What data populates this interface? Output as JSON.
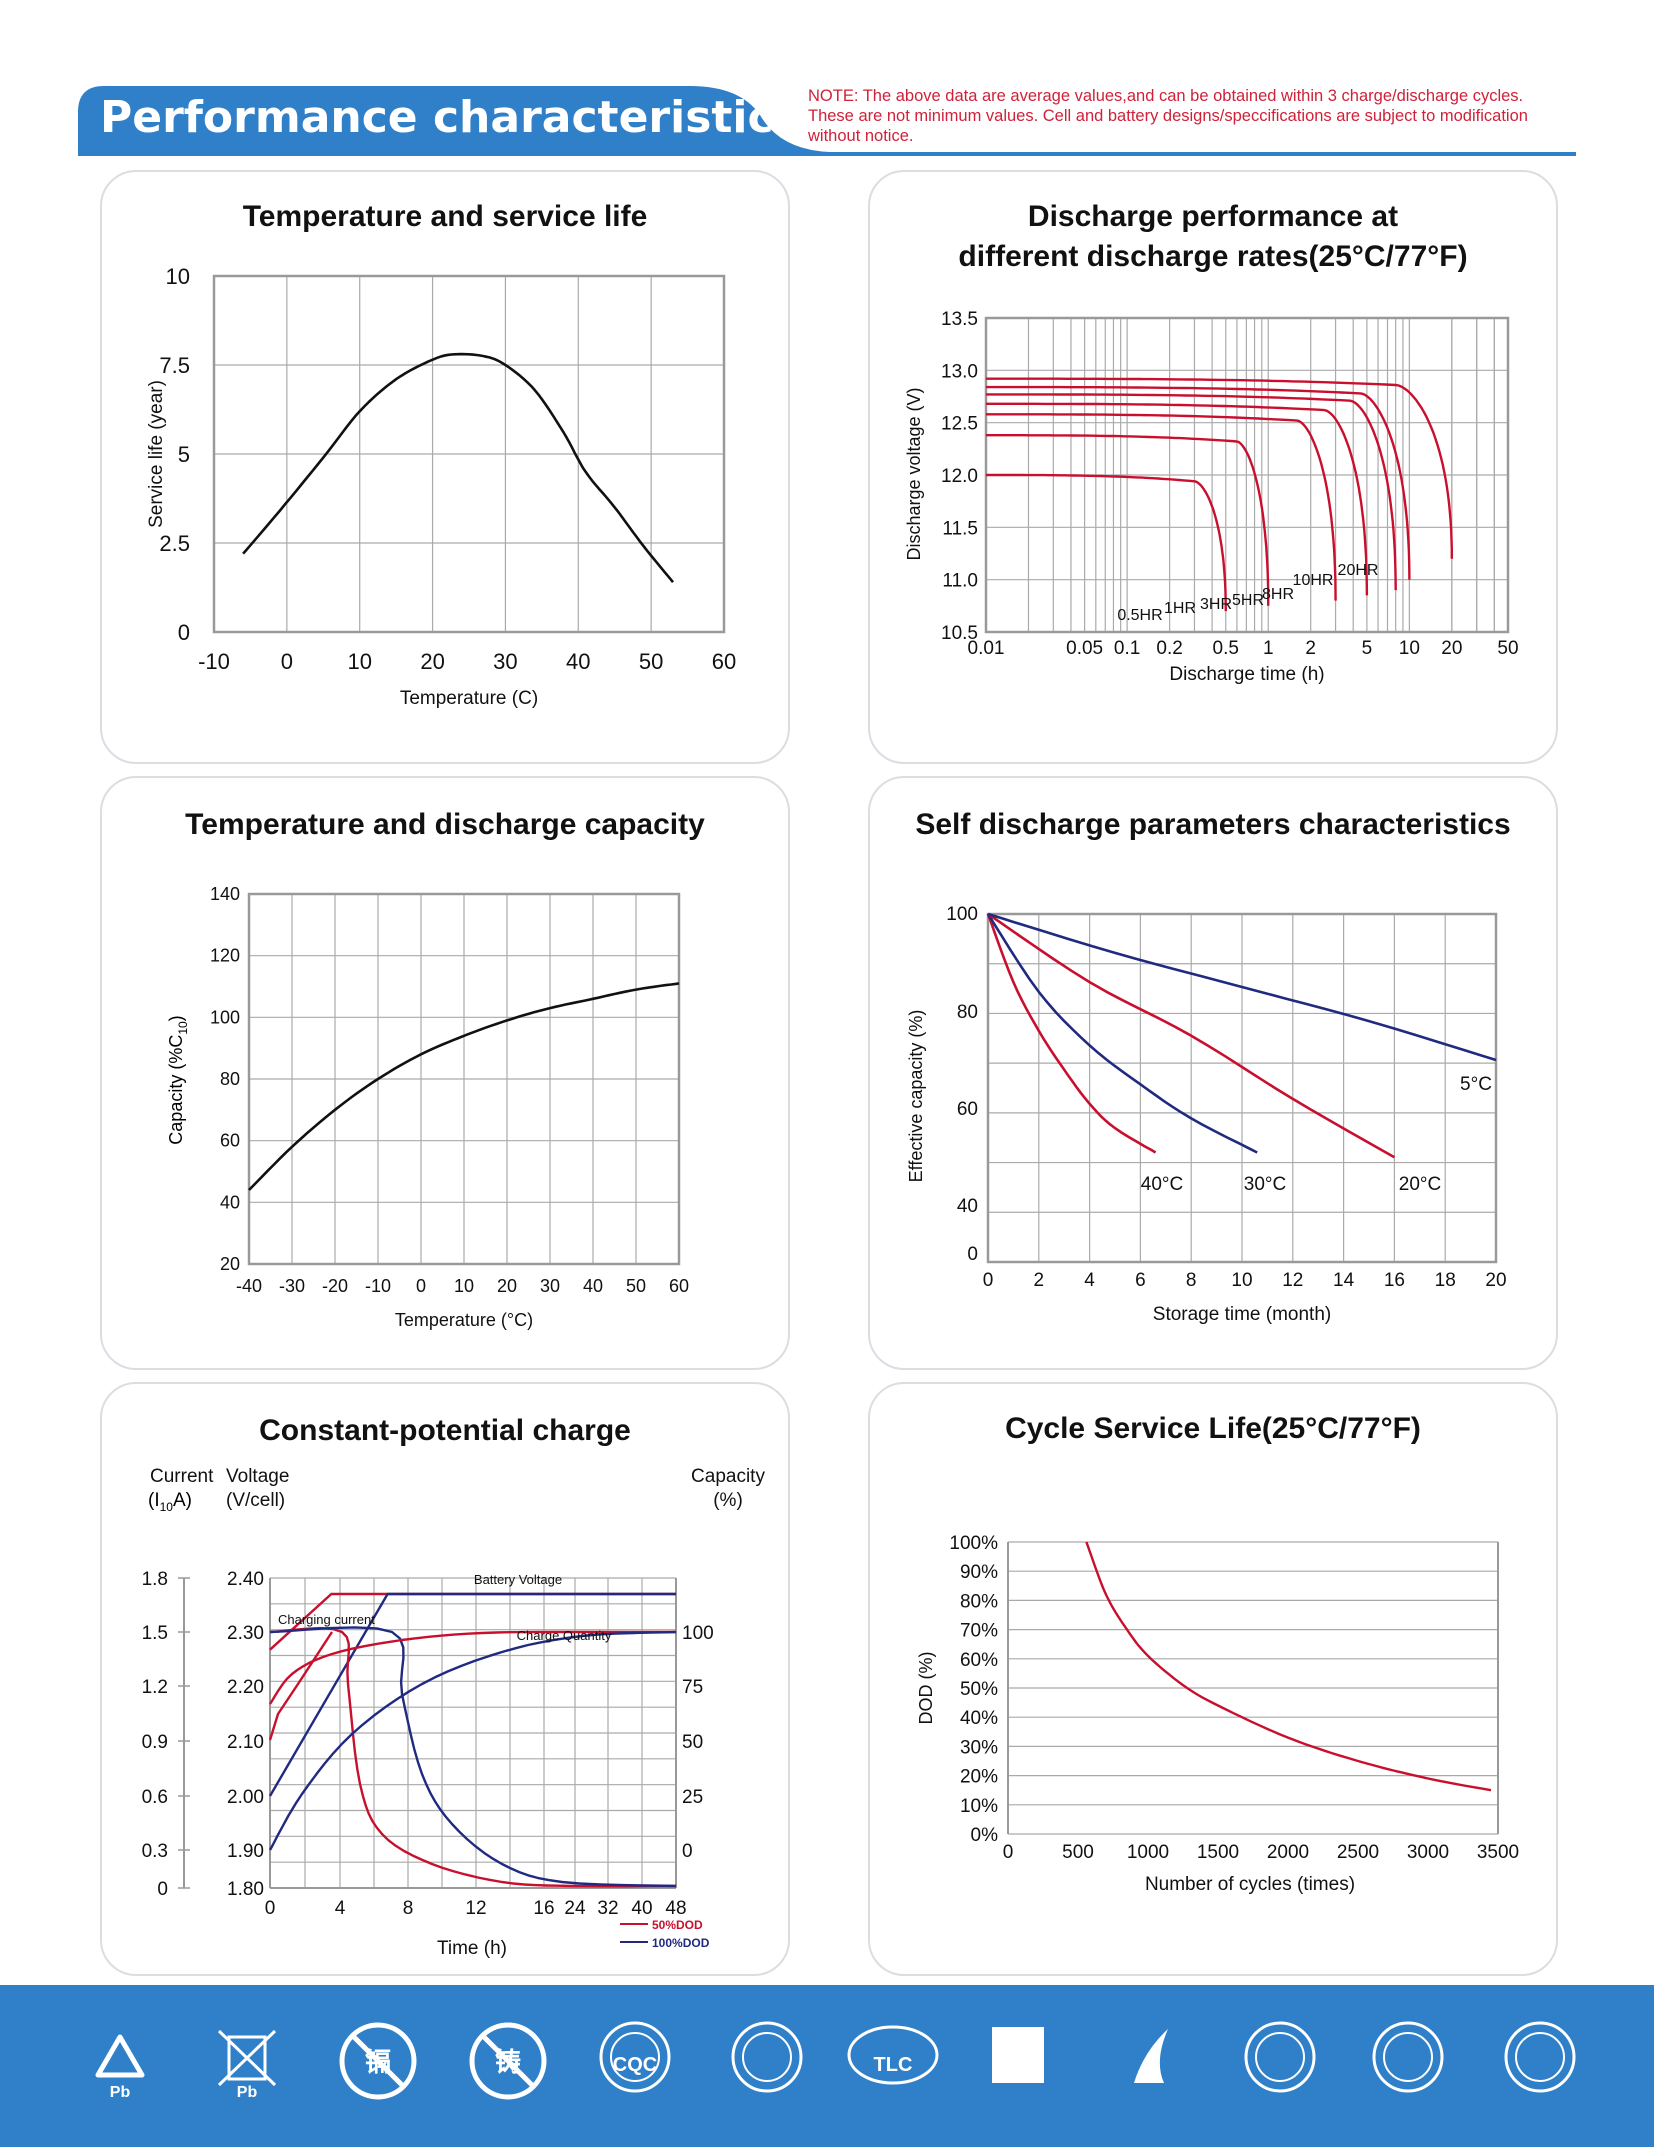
{
  "header": {
    "title": "Performance characteristics",
    "note_lines": [
      "NOTE: The above data are average values,and can be obtained within 3 charge/discharge cycles.",
      "These are not minimum values. Cell and battery designs/speccifications are subject to modification",
      "without notice."
    ]
  },
  "colors": {
    "brand_blue": "#2f80c8",
    "red": "#c8102e",
    "navy": "#1f2a80",
    "note_red": "#d0213a"
  },
  "charts": [
    {
      "id": "service_life",
      "title_lines": [
        "Temperature and service life"
      ],
      "xlabel": "Temperature (C)",
      "ylabel": "Service life (year)",
      "x_ticks": [
        "-10",
        "0",
        "10",
        "20",
        "30",
        "40",
        "50",
        "60"
      ],
      "y_ticks": [
        "0",
        "2.5",
        "5",
        "7.5",
        "10"
      ],
      "chart_data": {
        "type": "line",
        "xlim": [
          -10,
          60
        ],
        "ylim": [
          0,
          10
        ],
        "grid": true,
        "series": [
          {
            "x": [
              -6,
              -1,
              5,
              10,
              15,
              20,
              23,
              27,
              30,
              34,
              38,
              41,
              45,
              49,
              53
            ],
            "y": [
              2.2,
              3.4,
              4.9,
              6.2,
              7.1,
              7.65,
              7.8,
              7.75,
              7.5,
              6.8,
              5.6,
              4.5,
              3.5,
              2.4,
              1.4
            ]
          }
        ]
      }
    },
    {
      "id": "discharge_rates",
      "title_lines": [
        "Discharge performance at",
        "different discharge rates(25°C/77°F)"
      ],
      "xlabel": "Discharge time (h)",
      "ylabel": "Discharge voltage (V)",
      "x_ticks": [
        "0.01",
        "0.05",
        "0.1",
        "0.2",
        "0.5",
        "1",
        "2",
        "5",
        "10",
        "20",
        "50"
      ],
      "y_ticks": [
        "10.5",
        "11.0",
        "11.5",
        "12.0",
        "12.5",
        "13.0",
        "13.5"
      ],
      "chart_data": {
        "type": "line",
        "x_scale": "log",
        "xlim": [
          0.01,
          50
        ],
        "ylim": [
          10.5,
          13.5
        ],
        "grid": true,
        "series": [
          {
            "name": "0.5HR",
            "plateau": 12.0,
            "end_time": 0.5,
            "end_voltage": 10.7,
            "knee_time": 0.3
          },
          {
            "name": "1HR",
            "plateau": 12.38,
            "end_time": 1.0,
            "end_voltage": 10.75,
            "knee_time": 0.6
          },
          {
            "name": "3HR",
            "plateau": 12.58,
            "end_time": 3.0,
            "end_voltage": 10.8,
            "knee_time": 1.6
          },
          {
            "name": "5HR",
            "plateau": 12.68,
            "end_time": 5.0,
            "end_voltage": 10.85,
            "knee_time": 2.5
          },
          {
            "name": "8HR",
            "plateau": 12.77,
            "end_time": 8.0,
            "end_voltage": 10.9,
            "knee_time": 3.8
          },
          {
            "name": "10HR",
            "plateau": 12.84,
            "end_time": 10.0,
            "end_voltage": 11.0,
            "knee_time": 4.5
          },
          {
            "name": "20HR",
            "plateau": 12.92,
            "end_time": 20.0,
            "end_voltage": 11.2,
            "knee_time": 8.0
          }
        ]
      }
    },
    {
      "id": "temp_capacity",
      "title_lines": [
        "Temperature and discharge capacity"
      ],
      "xlabel": "Temperature (°C)",
      "ylabel": "Capacity (%C",
      "ylabel_sub": "10",
      "ylabel_end": ")",
      "x_ticks": [
        "-40",
        "-30",
        "-20",
        "-10",
        "0",
        "10",
        "20",
        "30",
        "40",
        "50",
        "60"
      ],
      "y_ticks": [
        "20",
        "40",
        "60",
        "80",
        "100",
        "120",
        "140"
      ],
      "chart_data": {
        "type": "line",
        "xlim": [
          -40,
          60
        ],
        "ylim": [
          20,
          140
        ],
        "grid": true,
        "series": [
          {
            "x": [
              -40,
              -30,
              -20,
              -10,
              0,
              10,
              20,
              30,
              40,
              50,
              60
            ],
            "y": [
              44,
              58,
              70,
              80,
              88,
              94,
              99,
              103,
              106,
              109,
              111
            ]
          }
        ]
      }
    },
    {
      "id": "self_discharge",
      "title_lines": [
        "Self discharge parameters characteristics"
      ],
      "xlabel": "Storage time (month)",
      "ylabel": "Effective capacity (%)",
      "x_ticks": [
        "0",
        "2",
        "4",
        "6",
        "8",
        "10",
        "12",
        "14",
        "16",
        "18",
        "20"
      ],
      "y_ticks": [
        "0",
        "40",
        "60",
        "80",
        "100"
      ],
      "chart_data": {
        "type": "line",
        "xlim": [
          0,
          20
        ],
        "grid": true,
        "y_axis_note": "y axis labels 0,40,60,80,100 at equal spacing (0 shown at bottom)",
        "series": [
          {
            "name": "40°C",
            "x": [
              0,
              1,
              2,
              3,
              4,
              5,
              6.6
            ],
            "y": [
              100,
              86,
              76,
              68,
              61,
              56,
              51
            ]
          },
          {
            "name": "30°C",
            "x": [
              0,
              2,
              4,
              6,
              8,
              10.6
            ],
            "y": [
              100,
              84,
              73,
              65,
              58,
              51
            ]
          },
          {
            "name": "20°C",
            "x": [
              0,
              4,
              8,
              12,
              16
            ],
            "y": [
              100,
              86,
              75,
              62,
              50
            ]
          },
          {
            "name": "5°C",
            "x": [
              0,
              5,
              10,
              15,
              20
            ],
            "y": [
              100,
              92,
              85,
              78,
              70
            ]
          }
        ]
      }
    },
    {
      "id": "constant_potential",
      "title_lines": [
        "Constant-potential charge"
      ],
      "axis_header_left1": "Current",
      "axis_header_left1_b": "(I",
      "axis_header_left1_sub": "10",
      "axis_header_left1_c": "A)",
      "axis_header_left2": "Voltage",
      "axis_header_left2_b": "(V/cell)",
      "axis_header_right": "Capacity",
      "axis_header_right_b": "(%)",
      "current_ticks": [
        "1.8",
        "1.5",
        "1.2",
        "0.9",
        "0.6",
        "0.3",
        "0"
      ],
      "voltage_ticks": [
        "2.40",
        "2.30",
        "2.20",
        "2.10",
        "2.00",
        "1.90",
        "1.80"
      ],
      "capacity_ticks": [
        "100",
        "75",
        "50",
        "25",
        "0"
      ],
      "x_ticks": [
        "0",
        "4",
        "8",
        "12",
        "16",
        "24",
        "32",
        "40",
        "48"
      ],
      "xlabel": "Time (h)",
      "annotations": {
        "battery_voltage": "Battery Voltage",
        "charging_current": "Charging current",
        "charge_quantity": "Charge Quantity"
      },
      "legend": [
        {
          "name": "50%DOD",
          "color": "#c8102e"
        },
        {
          "name": "100%DOD",
          "color": "#1f2a80"
        }
      ],
      "chart_data": {
        "type": "line",
        "series": [
          {
            "name": "50%DOD voltage",
            "x": [
              0,
              3.5,
              48
            ],
            "y": [
              1.95,
              2.35,
              2.35
            ]
          },
          {
            "name": "100%DOD voltage",
            "x": [
              0,
              7,
              48
            ],
            "y": [
              1.8,
              2.35,
              2.35
            ]
          },
          {
            "name": "50%DOD current",
            "x": [
              0,
              3.6,
              4.5,
              6,
              8,
              12,
              16,
              48
            ],
            "y": [
              1.5,
              1.5,
              0.9,
              0.5,
              0.3,
              0.12,
              0.05,
              0.02
            ]
          },
          {
            "name": "100%DOD current",
            "x": [
              0,
              6.8,
              8,
              10,
              12,
              16,
              24,
              48
            ],
            "y": [
              1.5,
              1.5,
              1.0,
              0.55,
              0.3,
              0.1,
              0.03,
              0.02
            ]
          },
          {
            "name": "50%DOD capacity",
            "x": [
              0,
              2,
              4,
              8,
              12,
              16,
              24,
              48
            ],
            "y": [
              50,
              75,
              88,
              96,
              99,
              100,
              100,
              100
            ]
          },
          {
            "name": "100%DOD capacity",
            "x": [
              0,
              2,
              4,
              8,
              12,
              16,
              24,
              48
            ],
            "y": [
              0,
              25,
              45,
              68,
              82,
              92,
              99,
              100
            ]
          }
        ]
      }
    },
    {
      "id": "cycle_life",
      "title_lines": [
        "Cycle Service Life(25°C/77°F)"
      ],
      "xlabel": "Number of cycles (times)",
      "ylabel": "DOD  (%)",
      "x_ticks": [
        "0",
        "500",
        "1000",
        "1500",
        "2000",
        "2500",
        "3000",
        "3500"
      ],
      "y_ticks": [
        "0%",
        "10%",
        "20%",
        "30%",
        "40%",
        "50%",
        "60%",
        "70%",
        "80%",
        "90%",
        "100%"
      ],
      "chart_data": {
        "type": "line",
        "xlim": [
          0,
          3500
        ],
        "ylim": [
          0,
          100
        ],
        "grid": true,
        "series": [
          {
            "x": [
              560,
              700,
              850,
              1000,
              1250,
              1500,
              2000,
              2500,
              3000,
              3450
            ],
            "y": [
              100,
              82,
              70,
              61,
              51,
              44,
              33,
              25,
              19,
              15
            ]
          }
        ]
      }
    }
  ],
  "footer": {
    "certifications": [
      {
        "icon": "recycle-icon",
        "label": "Pb"
      },
      {
        "icon": "crossed-bin-icon",
        "label": "Pb"
      },
      {
        "icon": "no-cadmium-icon",
        "label": "镉"
      },
      {
        "icon": "no-lead-icon",
        "label": "铸"
      },
      {
        "icon": "cqc-icon",
        "label": "CQC"
      },
      {
        "icon": "cgc-seal-icon",
        "label": ""
      },
      {
        "icon": "tlc-icon",
        "label": "TLC"
      },
      {
        "icon": "qs-icon",
        "label": ""
      },
      {
        "icon": "high-tech-icon",
        "label": ""
      },
      {
        "icon": "golden-sun-icon",
        "label": ""
      },
      {
        "icon": "exempt-product-icon",
        "label": ""
      },
      {
        "icon": "brand-seal-icon",
        "label": ""
      }
    ]
  }
}
